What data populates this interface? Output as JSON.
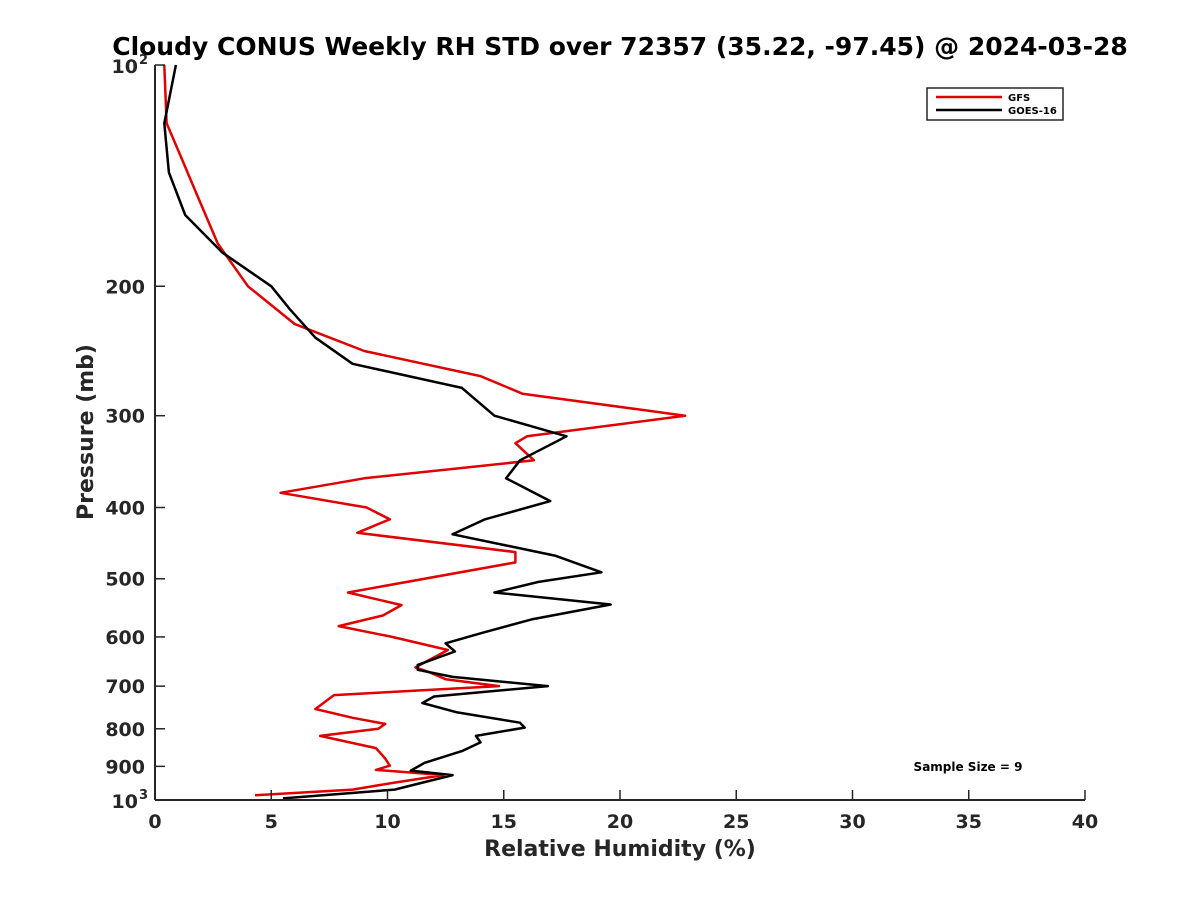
{
  "chart_data": {
    "type": "line",
    "title": "Cloudy CONUS Weekly RH STD over 72357 (35.22, -97.45) @ 2024-03-28",
    "xlabel": "Relative Humidity (%)",
    "ylabel": "Pressure (mb)",
    "xlim": [
      0,
      40
    ],
    "ylim": [
      100,
      1000
    ],
    "y_scale": "log",
    "y_reversed": true,
    "grid": false,
    "legend_position": "top-right",
    "x_ticks": [
      "0",
      "5",
      "10",
      "15",
      "20",
      "25",
      "30",
      "35",
      "40"
    ],
    "y_ticks": [
      {
        "value": 100,
        "label": "10",
        "sup": "2"
      },
      {
        "value": 200,
        "label": "200",
        "sup": ""
      },
      {
        "value": 300,
        "label": "300",
        "sup": ""
      },
      {
        "value": 400,
        "label": "400",
        "sup": ""
      },
      {
        "value": 500,
        "label": "500",
        "sup": ""
      },
      {
        "value": 600,
        "label": "600",
        "sup": ""
      },
      {
        "value": 700,
        "label": "700",
        "sup": ""
      },
      {
        "value": 800,
        "label": "800",
        "sup": ""
      },
      {
        "value": 900,
        "label": "900",
        "sup": ""
      },
      {
        "value": 1000,
        "label": "10",
        "sup": "3"
      }
    ],
    "annotation": "Sample Size = 9",
    "series": [
      {
        "name": "GFS",
        "color": "#e00000",
        "points": [
          [
            0.4,
            100
          ],
          [
            0.5,
            120
          ],
          [
            1.1,
            133
          ],
          [
            1.8,
            150
          ],
          [
            2.7,
            175
          ],
          [
            4.0,
            200
          ],
          [
            6.0,
            225
          ],
          [
            9.0,
            245
          ],
          [
            14.0,
            265
          ],
          [
            15.8,
            280
          ],
          [
            22.8,
            300
          ],
          [
            16.0,
            320
          ],
          [
            15.5,
            327
          ],
          [
            16.3,
            345
          ],
          [
            9.0,
            365
          ],
          [
            5.4,
            382
          ],
          [
            9.1,
            400
          ],
          [
            10.1,
            415
          ],
          [
            8.7,
            433
          ],
          [
            15.5,
            460
          ],
          [
            15.5,
            475
          ],
          [
            8.3,
            522
          ],
          [
            10.6,
            543
          ],
          [
            9.8,
            561
          ],
          [
            7.9,
            580
          ],
          [
            10.2,
            600
          ],
          [
            12.6,
            625
          ],
          [
            11.2,
            660
          ],
          [
            11.8,
            670
          ],
          [
            12.5,
            685
          ],
          [
            14.8,
            700
          ],
          [
            7.7,
            720
          ],
          [
            6.9,
            752
          ],
          [
            8.5,
            773
          ],
          [
            9.9,
            788
          ],
          [
            9.6,
            800
          ],
          [
            7.1,
            818
          ],
          [
            9.5,
            850
          ],
          [
            9.9,
            878
          ],
          [
            10.1,
            898
          ],
          [
            9.5,
            910
          ],
          [
            10.5,
            915
          ],
          [
            12.4,
            925
          ],
          [
            10.2,
            948
          ],
          [
            8.5,
            968
          ],
          [
            4.3,
            985
          ]
        ]
      },
      {
        "name": "GOES-16",
        "color": "#000000",
        "points": [
          [
            0.9,
            100
          ],
          [
            0.4,
            120
          ],
          [
            0.6,
            140
          ],
          [
            1.3,
            160
          ],
          [
            2.9,
            180
          ],
          [
            5.0,
            200
          ],
          [
            5.8,
            215
          ],
          [
            6.9,
            235
          ],
          [
            8.5,
            255
          ],
          [
            13.2,
            275
          ],
          [
            14.6,
            300
          ],
          [
            17.7,
            320
          ],
          [
            15.7,
            345
          ],
          [
            15.1,
            365
          ],
          [
            17.0,
            392
          ],
          [
            14.2,
            415
          ],
          [
            12.8,
            435
          ],
          [
            17.2,
            465
          ],
          [
            19.2,
            490
          ],
          [
            16.5,
            505
          ],
          [
            14.6,
            522
          ],
          [
            19.6,
            542
          ],
          [
            16.2,
            568
          ],
          [
            14.1,
            592
          ],
          [
            12.5,
            612
          ],
          [
            12.9,
            628
          ],
          [
            11.3,
            655
          ],
          [
            11.3,
            665
          ],
          [
            12.8,
            680
          ],
          [
            16.9,
            700
          ],
          [
            12.0,
            723
          ],
          [
            11.5,
            738
          ],
          [
            13.0,
            760
          ],
          [
            15.7,
            785
          ],
          [
            15.9,
            797
          ],
          [
            13.8,
            818
          ],
          [
            14.0,
            835
          ],
          [
            13.2,
            858
          ],
          [
            11.6,
            890
          ],
          [
            11.0,
            912
          ],
          [
            12.8,
            925
          ],
          [
            10.3,
            968
          ],
          [
            5.5,
            995
          ]
        ]
      }
    ]
  }
}
